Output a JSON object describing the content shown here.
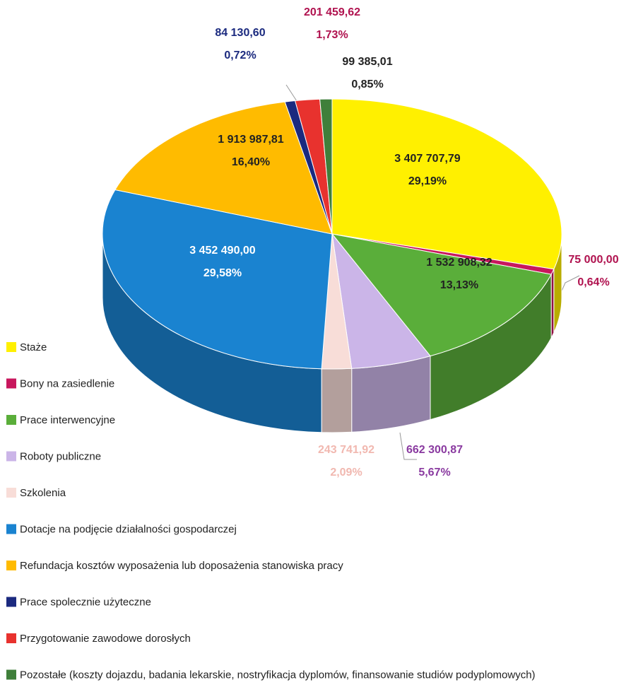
{
  "chart_data": {
    "type": "pie",
    "categories": [
      "Staże",
      "Bony na zasiedlenie",
      "Prace interwencyjne",
      "Roboty publiczne",
      "Szkolenia",
      "Dotacje na podjęcie działalności gospodarczej",
      "Refundacja kosztów wyposażenia lub doposażenia stanowiska pracy",
      "Prace spolecznie użyteczne",
      "Przygotowanie zawodowe dorosłych",
      "Pozostałe (koszty dojazdu, badania lekarskie, nostryfikacja dyplomów, finansowanie studiów podyplomowych)"
    ],
    "values": [
      3407707.79,
      75000.0,
      1532908.32,
      662300.87,
      243741.92,
      3452490.0,
      1913987.81,
      84130.6,
      201459.62,
      99385.01
    ],
    "value_labels": [
      "3 407 707,79",
      "75 000,00",
      "1 532 908,32",
      "662 300,87",
      "243 741,92",
      "3 452 490,00",
      "1 913 987,81",
      "84 130,60",
      "201 459,62",
      "99 385,01"
    ],
    "percentages": [
      29.19,
      0.64,
      13.13,
      5.67,
      2.09,
      29.58,
      16.4,
      0.72,
      1.73,
      0.85
    ],
    "percentage_labels": [
      "29,19%",
      "0,64%",
      "13,13%",
      "5,67%",
      "2,09%",
      "29,58%",
      "16,40%",
      "0,72%",
      "1,73%",
      "0,85%"
    ],
    "colors": [
      "#fff000",
      "#c8175d",
      "#5aae3a",
      "#cbb5e8",
      "#f8ddd8",
      "#1a83d0",
      "#ffbb00",
      "#1b2a7f",
      "#e8322e",
      "#3f7f3a"
    ]
  }
}
